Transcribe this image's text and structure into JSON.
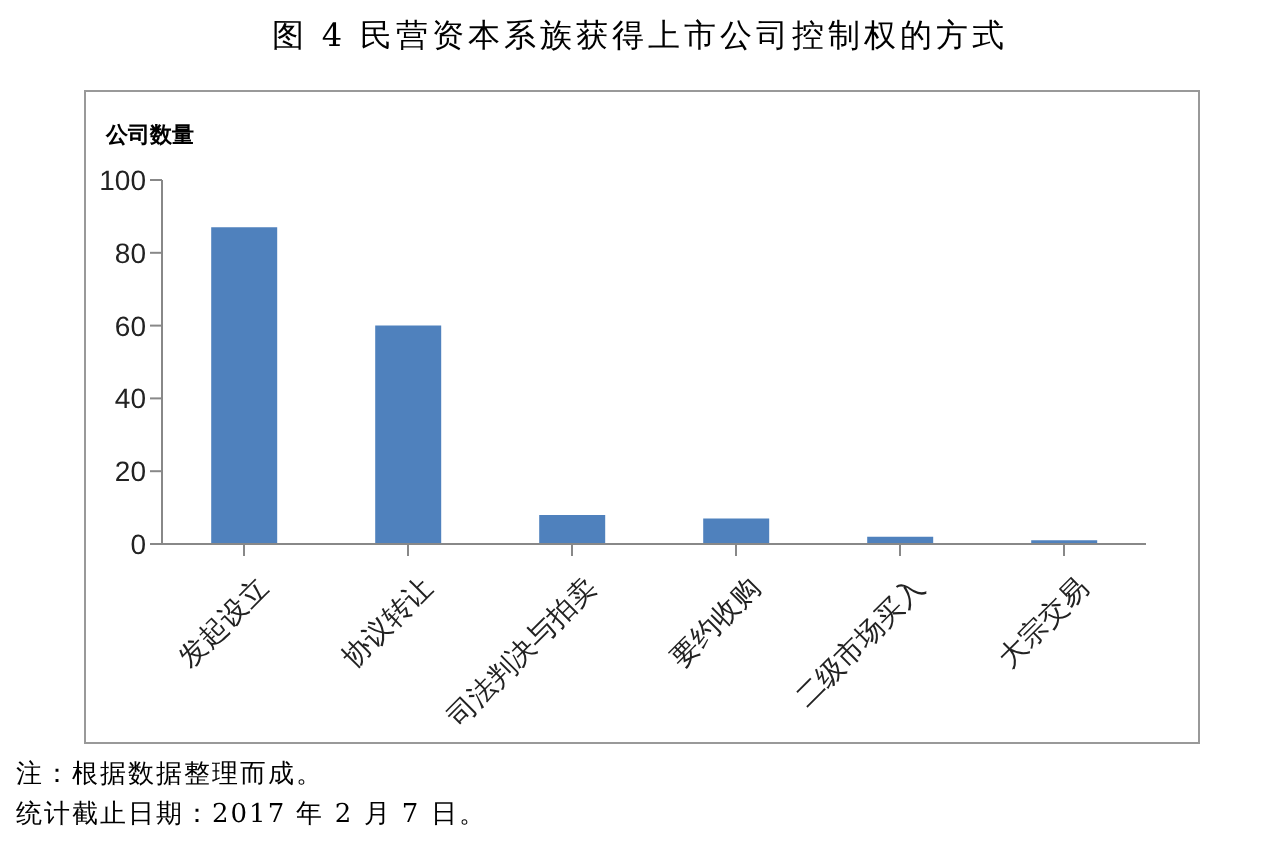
{
  "chart_data": {
    "type": "bar",
    "title": "图 4 民营资本系族获得上市公司控制权的方式",
    "ylabel": "公司数量",
    "categories": [
      "发起设立",
      "协议转让",
      "司法判决与拍卖",
      "要约收购",
      "二级市场买入",
      "大宗交易"
    ],
    "values": [
      87,
      60,
      8,
      7,
      2,
      1
    ],
    "color": "#4f81bd",
    "ylim": [
      0,
      100
    ],
    "yticks": [
      0,
      20,
      40,
      60,
      80,
      100
    ],
    "grid": false,
    "annotations": [
      "注：根据数据整理而成。",
      "统计截止日期：2017 年 2 月 7 日。"
    ]
  }
}
